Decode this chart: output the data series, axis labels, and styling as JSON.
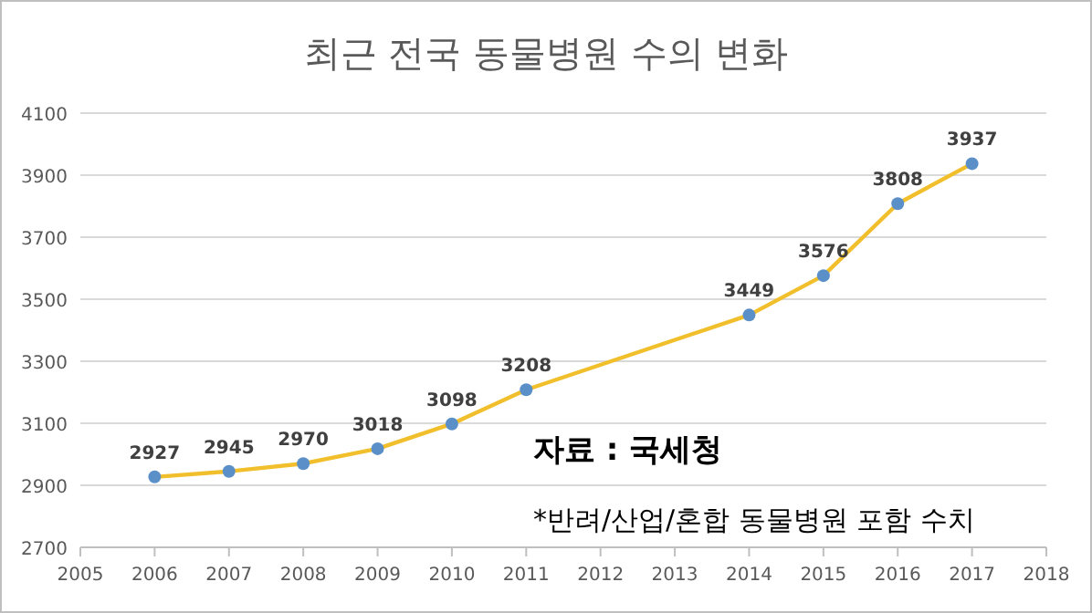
{
  "chart_data": {
    "type": "line",
    "title": "최근 전국 동물병원 수의 변화",
    "x": [
      2006,
      2007,
      2008,
      2009,
      2010,
      2011,
      2014,
      2015,
      2016,
      2017
    ],
    "series": [
      {
        "color": "#f2bf2c",
        "colors": [
          "#5b8fc7",
          "#5b8fc7",
          "#5b8fc7",
          "#5b8fc7",
          "#5b8fc7",
          "#5b8fc7",
          "#5b8fc7",
          "#5b8fc7",
          "#5b8fc7",
          "#5b8fc7"
        ],
        "values": [
          2927,
          2945,
          2970,
          3018,
          3098,
          3208,
          3449,
          3576,
          3808,
          3937
        ]
      }
    ],
    "xlim": [
      2005,
      2018
    ],
    "xticks": [
      2005,
      2006,
      2007,
      2008,
      2009,
      2010,
      2011,
      2012,
      2013,
      2014,
      2015,
      2016,
      2017,
      2018
    ],
    "ylim": [
      2700,
      4100
    ],
    "yticks": [
      2700,
      2900,
      3100,
      3300,
      3500,
      3700,
      3900,
      4100
    ],
    "grid": "y",
    "marker": "circle",
    "data_labels": true,
    "annotations": [
      "자료 : 국세청",
      "*반려/산업/혼합 동물병원 포함 수치"
    ]
  }
}
